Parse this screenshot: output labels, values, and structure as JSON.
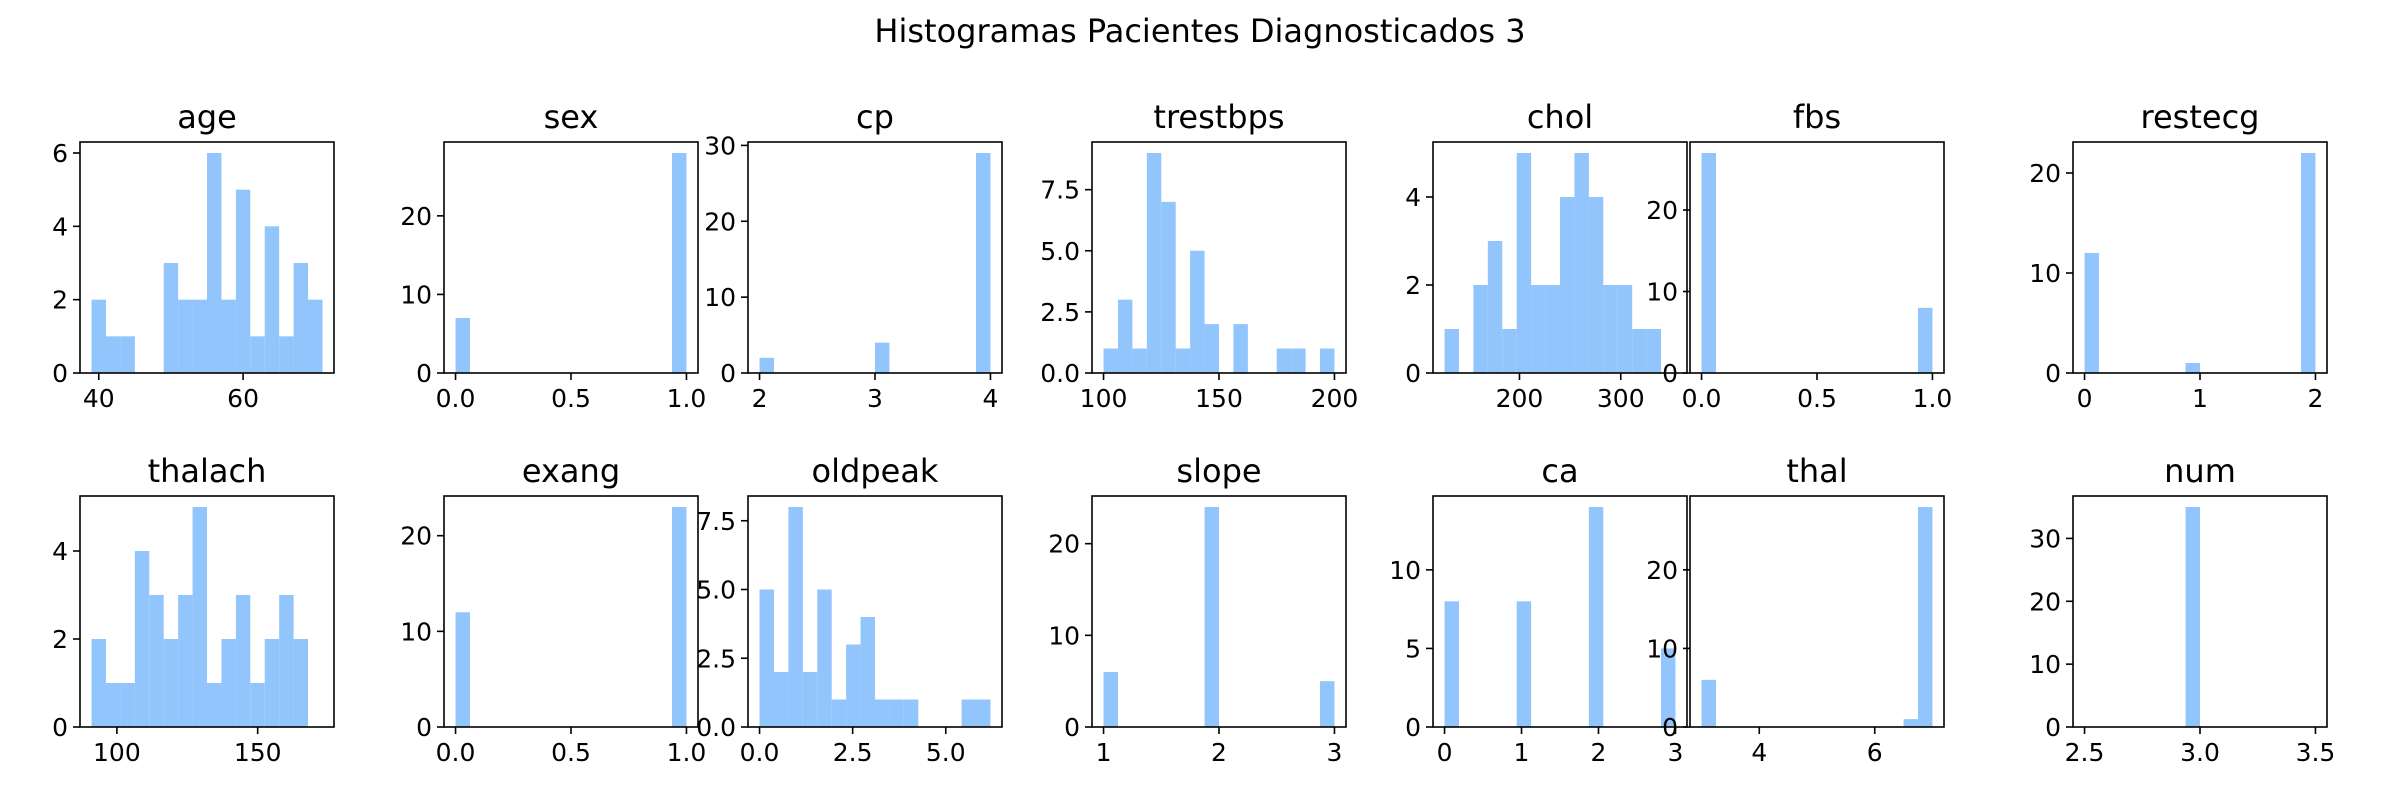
{
  "chart_data": {
    "type": "bar",
    "title": "Histogramas Pacientes Diagnosticados 3",
    "bar_color": "#92c5fc",
    "subplots": [
      {
        "title": "age",
        "range": [
          39,
          71
        ],
        "values": [
          2,
          1,
          1,
          0,
          0,
          3,
          2,
          2,
          6,
          2,
          5,
          1,
          4,
          1,
          3,
          2
        ],
        "xlim": [
          37.4,
          72.6
        ],
        "ylim": [
          0,
          6.3
        ],
        "xticks": [
          40,
          60
        ],
        "yticks": [
          0,
          2,
          4,
          6
        ],
        "xtick_labels": [
          "40",
          "60"
        ],
        "ytick_labels": [
          "0",
          "2",
          "4",
          "6"
        ]
      },
      {
        "title": "sex",
        "range": [
          0,
          1
        ],
        "values": [
          7,
          0,
          0,
          0,
          0,
          0,
          0,
          0,
          0,
          0,
          0,
          0,
          0,
          0,
          0,
          28
        ],
        "xlim": [
          -0.05,
          1.05
        ],
        "ylim": [
          0,
          29.4
        ],
        "xticks": [
          0,
          0.5,
          1
        ],
        "yticks": [
          0,
          10,
          20
        ],
        "xtick_labels": [
          "0.0",
          "0.5",
          "1.0"
        ],
        "ytick_labels": [
          "0",
          "10",
          "20"
        ]
      },
      {
        "title": "cp",
        "range": [
          2,
          4
        ],
        "values": [
          2,
          0,
          0,
          0,
          0,
          0,
          0,
          0,
          4,
          0,
          0,
          0,
          0,
          0,
          0,
          29
        ],
        "xlim": [
          1.9,
          4.1
        ],
        "ylim": [
          0,
          30.45
        ],
        "xticks": [
          2,
          3,
          4
        ],
        "yticks": [
          0,
          10,
          20,
          30
        ],
        "xtick_labels": [
          "2",
          "3",
          "4"
        ],
        "ytick_labels": [
          "0",
          "10",
          "20",
          "30"
        ]
      },
      {
        "title": "trestbps",
        "range": [
          100,
          200
        ],
        "values": [
          1,
          3,
          1,
          9,
          7,
          1,
          5,
          2,
          0,
          2,
          0,
          0,
          1,
          1,
          0,
          1
        ],
        "xlim": [
          95,
          205
        ],
        "ylim": [
          0,
          9.45
        ],
        "xticks": [
          100,
          150,
          200
        ],
        "yticks": [
          0,
          2.5,
          5,
          7.5
        ],
        "xtick_labels": [
          "100",
          "150",
          "200"
        ],
        "ytick_labels": [
          "0.0",
          "2.5",
          "5.0",
          "7.5"
        ]
      },
      {
        "title": "chol",
        "range": [
          126,
          354
        ],
        "values": [
          1,
          0,
          2,
          3,
          1,
          5,
          2,
          2,
          4,
          5,
          4,
          2,
          2,
          1,
          1,
          0
        ],
        "xlim": [
          114.6,
          365.4
        ],
        "ylim": [
          0,
          5.25
        ],
        "xticks": [
          200,
          300
        ],
        "yticks": [
          0,
          2,
          4
        ],
        "xtick_labels": [
          "200",
          "300"
        ],
        "ytick_labels": [
          "0",
          "2",
          "4"
        ]
      },
      {
        "title": "fbs",
        "range": [
          0,
          1
        ],
        "values": [
          27,
          0,
          0,
          0,
          0,
          0,
          0,
          0,
          0,
          0,
          0,
          0,
          0,
          0,
          0,
          8
        ],
        "xlim": [
          -0.05,
          1.05
        ],
        "ylim": [
          0,
          28.35
        ],
        "xticks": [
          0,
          0.5,
          1
        ],
        "yticks": [
          0,
          10,
          20
        ],
        "xtick_labels": [
          "0.0",
          "0.5",
          "1.0"
        ],
        "ytick_labels": [
          "0",
          "10",
          "20"
        ]
      },
      {
        "title": "restecg",
        "range": [
          0,
          2
        ],
        "values": [
          12,
          0,
          0,
          0,
          0,
          0,
          0,
          1,
          0,
          0,
          0,
          0,
          0,
          0,
          0,
          22
        ],
        "xlim": [
          -0.1,
          2.1
        ],
        "ylim": [
          0,
          23.1
        ],
        "xticks": [
          0,
          1,
          2
        ],
        "yticks": [
          0,
          10,
          20
        ],
        "xtick_labels": [
          "0",
          "1",
          "2"
        ],
        "ytick_labels": [
          "0",
          "10",
          "20"
        ]
      },
      {
        "title": "thalach",
        "range": [
          91,
          173
        ],
        "values": [
          2,
          1,
          1,
          4,
          3,
          2,
          3,
          5,
          1,
          2,
          3,
          1,
          2,
          3,
          2,
          0
        ],
        "xlim": [
          86.9,
          177.1
        ],
        "ylim": [
          0,
          5.25
        ],
        "xticks": [
          100,
          150
        ],
        "yticks": [
          0,
          2,
          4
        ],
        "xtick_labels": [
          "100",
          "150"
        ],
        "ytick_labels": [
          "0",
          "2",
          "4"
        ]
      },
      {
        "title": "exang",
        "range": [
          0,
          1
        ],
        "values": [
          12,
          0,
          0,
          0,
          0,
          0,
          0,
          0,
          0,
          0,
          0,
          0,
          0,
          0,
          0,
          23
        ],
        "xlim": [
          -0.05,
          1.05
        ],
        "ylim": [
          0,
          24.15
        ],
        "xticks": [
          0,
          0.5,
          1
        ],
        "yticks": [
          0,
          10,
          20
        ],
        "xtick_labels": [
          "0.0",
          "0.5",
          "1.0"
        ],
        "ytick_labels": [
          "0",
          "10",
          "20"
        ]
      },
      {
        "title": "oldpeak",
        "range": [
          0,
          6.2
        ],
        "values": [
          5,
          2,
          8,
          2,
          5,
          1,
          3,
          4,
          1,
          1,
          1,
          0,
          0,
          0,
          1,
          1
        ],
        "xlim": [
          -0.31,
          6.51
        ],
        "ylim": [
          0,
          8.4
        ],
        "xticks": [
          0,
          2.5,
          5
        ],
        "yticks": [
          0,
          2.5,
          5,
          7.5
        ],
        "xtick_labels": [
          "0.0",
          "2.5",
          "5.0"
        ],
        "ytick_labels": [
          "0.0",
          "2.5",
          "5.0",
          "7.5"
        ]
      },
      {
        "title": "slope",
        "range": [
          1,
          3
        ],
        "values": [
          6,
          0,
          0,
          0,
          0,
          0,
          0,
          24,
          0,
          0,
          0,
          0,
          0,
          0,
          0,
          5
        ],
        "xlim": [
          0.9,
          3.1
        ],
        "ylim": [
          0,
          25.2
        ],
        "xticks": [
          1,
          2,
          3
        ],
        "yticks": [
          0,
          10,
          20
        ],
        "xtick_labels": [
          "1",
          "2",
          "3"
        ],
        "ytick_labels": [
          "0",
          "10",
          "20"
        ]
      },
      {
        "title": "ca",
        "range": [
          0,
          3
        ],
        "values": [
          8,
          0,
          0,
          0,
          0,
          8,
          0,
          0,
          0,
          0,
          14,
          0,
          0,
          0,
          0,
          5
        ],
        "xlim": [
          -0.15,
          3.15
        ],
        "ylim": [
          0,
          14.7
        ],
        "xticks": [
          0,
          1,
          2,
          3
        ],
        "yticks": [
          0,
          5,
          10
        ],
        "xtick_labels": [
          "0",
          "1",
          "2",
          "3"
        ],
        "ytick_labels": [
          "0",
          "5",
          "10"
        ]
      },
      {
        "title": "thal",
        "range": [
          3,
          7
        ],
        "values": [
          6,
          0,
          0,
          0,
          0,
          0,
          0,
          0,
          0,
          0,
          0,
          0,
          0,
          0,
          1,
          28
        ],
        "xlim": [
          2.8,
          7.2
        ],
        "ylim": [
          0,
          29.4
        ],
        "xticks": [
          4,
          6
        ],
        "yticks": [
          0,
          10,
          20
        ],
        "xtick_labels": [
          "4",
          "6"
        ],
        "ytick_labels": [
          "0",
          "10",
          "20"
        ]
      },
      {
        "title": "num",
        "range": [
          2.5,
          3.5
        ],
        "values": [
          0,
          0,
          0,
          0,
          0,
          0,
          0,
          35,
          0,
          0,
          0,
          0,
          0,
          0,
          0,
          0
        ],
        "xlim": [
          2.45,
          3.55
        ],
        "ylim": [
          0,
          36.75
        ],
        "xticks": [
          2.5,
          3,
          3.5
        ],
        "yticks": [
          0,
          10,
          20,
          30
        ],
        "xtick_labels": [
          "2.5",
          "3.0",
          "3.5"
        ],
        "ytick_labels": [
          "0",
          "10",
          "20",
          "30"
        ]
      }
    ]
  }
}
